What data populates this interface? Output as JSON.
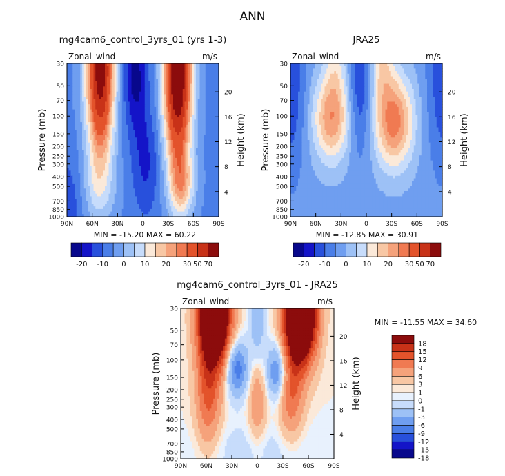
{
  "figure": {
    "title": "ANN"
  },
  "colors": {
    "levels12": [
      "#08088c",
      "#1414c8",
      "#2850dc",
      "#4a7ee8",
      "#6f9ef0",
      "#9dc1f6",
      "#c7dcfb",
      "#fbe9d9",
      "#f8c7a4",
      "#f5a27b",
      "#f07a52",
      "#e3532b",
      "#c83218",
      "#8c0c0c"
    ],
    "levels3": [
      "#08088c",
      "#1414c8",
      "#2850dc",
      "#4a7ee8",
      "#6f9ef0",
      "#9dc1f6",
      "#c7dcfb",
      "#e8f1fd",
      "#fbe9d9",
      "#f8c7a4",
      "#f5a27b",
      "#f07a52",
      "#e3532b",
      "#c83218",
      "#8c0c0c"
    ]
  },
  "chart_data": [
    {
      "type": "heatmap",
      "title": "mg4cam6_control_3yrs_01 (yrs 1-3)",
      "variable_label": "Zonal_wind",
      "units_label": "m/s",
      "ylabel": "Pressure (mb)",
      "y2label": "Height (km)",
      "x_ticks": [
        "90N",
        "60N",
        "30N",
        "0",
        "30S",
        "60S",
        "90S"
      ],
      "y_ticks": [
        "30",
        "50",
        "70",
        "100",
        "150",
        "200",
        "250",
        "300",
        "400",
        "500",
        "700",
        "850",
        "1000"
      ],
      "y2_ticks": [
        "20",
        "16",
        "12",
        "8",
        "4"
      ],
      "stats": "MIN = -15.20   MAX = 60.22",
      "colorbar_labels": [
        "-20",
        "-10",
        "0",
        "10",
        "20",
        "30",
        "50",
        "70"
      ],
      "min": -15.2,
      "max": 60.22
    },
    {
      "type": "heatmap",
      "title": "JRA25",
      "variable_label": "Zonal_wind",
      "units_label": "m/s",
      "ylabel": "Pressure (mb)",
      "y2label": "Height (km)",
      "x_ticks": [
        "90N",
        "60N",
        "30N",
        "0",
        "30S",
        "60S",
        "90S"
      ],
      "y_ticks": [
        "30",
        "50",
        "70",
        "100",
        "150",
        "200",
        "250",
        "300",
        "400",
        "500",
        "700",
        "850",
        "1000"
      ],
      "y2_ticks": [
        "20",
        "16",
        "12",
        "8",
        "4"
      ],
      "stats": "MIN = -12.85   MAX = 30.91",
      "colorbar_labels": [
        "-20",
        "-10",
        "0",
        "10",
        "20",
        "30",
        "50",
        "70"
      ],
      "min": -12.85,
      "max": 30.91
    },
    {
      "type": "heatmap",
      "title": "mg4cam6_control_3yrs_01 - JRA25",
      "variable_label": "Zonal_wind",
      "units_label": "m/s",
      "ylabel": "Pressure (mb)",
      "y2label": "Height (km)",
      "x_ticks": [
        "90N",
        "60N",
        "30N",
        "0",
        "30S",
        "60S",
        "90S"
      ],
      "y_ticks": [
        "30",
        "50",
        "70",
        "100",
        "150",
        "200",
        "250",
        "300",
        "400",
        "500",
        "700",
        "850",
        "1000"
      ],
      "y2_ticks": [
        "20",
        "16",
        "12",
        "8",
        "4"
      ],
      "stats": "MIN = -11.55   MAX =  34.60",
      "colorbar_labels": [
        "18",
        "15",
        "12",
        "9",
        "6",
        "3",
        "1",
        "0",
        "-1",
        "-3",
        "-6",
        "-9",
        "-12",
        "-15",
        "-18"
      ],
      "min": -11.55,
      "max": 34.6
    }
  ]
}
